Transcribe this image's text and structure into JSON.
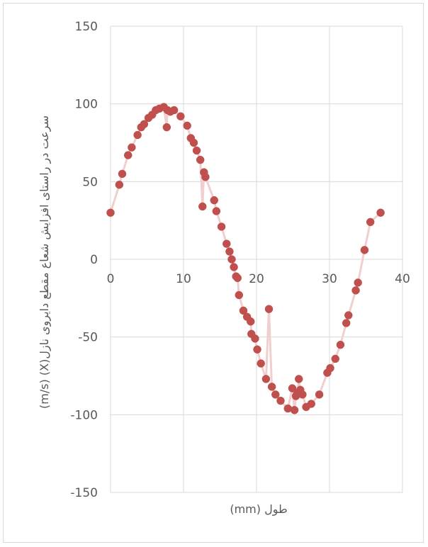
{
  "chart_data": {
    "type": "scatter",
    "title": "",
    "xlabel": "طول (mm)",
    "ylabel": "سرعت در راستای افزایش شعاع مقطع دایروی نازل(X) (m/s)",
    "xlim": [
      0,
      40
    ],
    "ylim": [
      -150,
      150
    ],
    "xticks": [
      0,
      10,
      20,
      30,
      40
    ],
    "yticks": [
      150,
      100,
      50,
      0,
      -50,
      -100,
      -150
    ],
    "grid": true,
    "legend": "none",
    "marker_color": "#c0504d",
    "line_color": "#f2cfcf",
    "series": [
      {
        "x": [
          0,
          1.2,
          1.6,
          2.4,
          2.9,
          3.7,
          4.2,
          4.6,
          5.2,
          5.7,
          6.2,
          6.7,
          7.3,
          7.7,
          7.8,
          8.2,
          8.7,
          9.6,
          10.5,
          11.0,
          11.4,
          11.8,
          12.3,
          12.6,
          12.8,
          13.0,
          14.2,
          14.5,
          15.2,
          15.9,
          16.3,
          16.6,
          16.9,
          17.2,
          17.4,
          17.6,
          18.2,
          18.7,
          19.2,
          19.3,
          19.8,
          20.1,
          20.6,
          21.3,
          21.7,
          22.1,
          22.6,
          23.3,
          24.3,
          24.9,
          25.2,
          25.4,
          25.6,
          25.8,
          26.0,
          26.3,
          26.8,
          27.5,
          28.6,
          29.7,
          30.1,
          30.8,
          31.5,
          32.3,
          32.6,
          33.6,
          33.9,
          34.8,
          35.6,
          37.0
        ],
        "y": [
          30,
          48,
          55,
          67,
          72,
          80,
          85,
          87,
          91,
          93,
          96,
          97,
          98,
          85,
          96,
          95,
          96,
          92,
          86,
          78,
          75,
          70,
          64,
          34,
          56,
          53,
          38,
          31,
          21,
          10,
          5,
          0,
          -5,
          -11,
          -12,
          -23,
          -33,
          -37,
          -40,
          -48,
          -51,
          -58,
          -67,
          -77,
          -32,
          -82,
          -87,
          -91,
          -96,
          -83,
          -97,
          -88,
          -86,
          -77,
          -84,
          -87,
          -95,
          -93,
          -87,
          -73,
          -70,
          -64,
          -55,
          -41,
          -36,
          -20,
          -15,
          6,
          24,
          30
        ]
      }
    ]
  }
}
